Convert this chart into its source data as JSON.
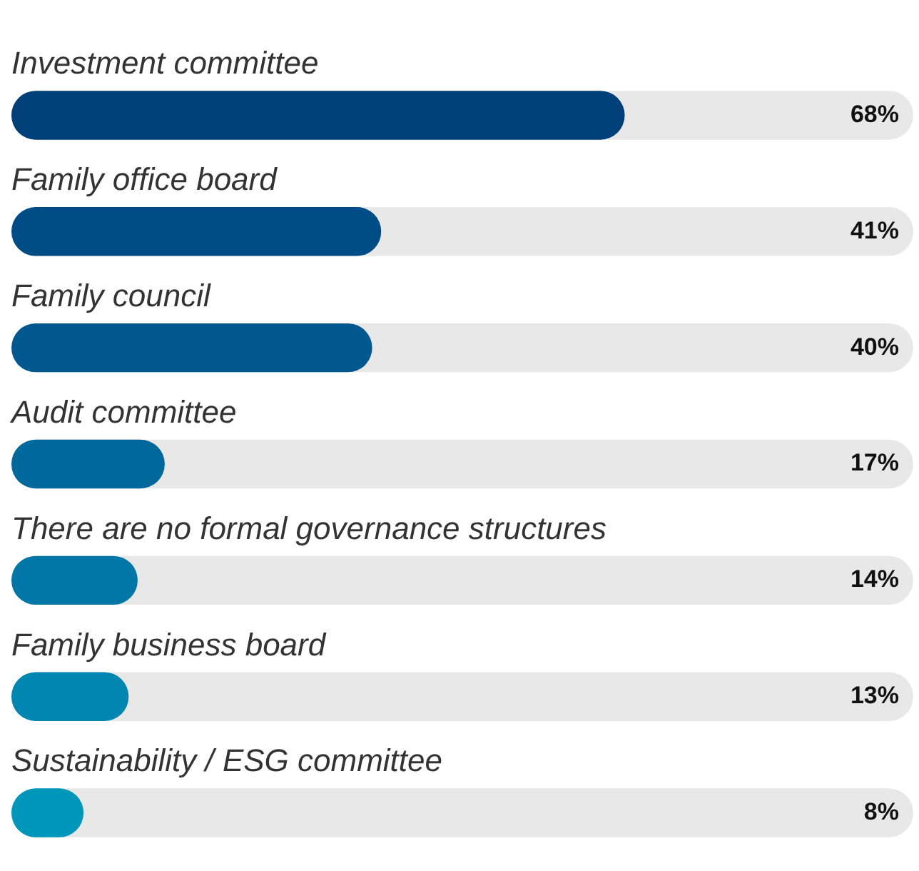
{
  "chart_data": {
    "type": "bar",
    "orientation": "horizontal",
    "categories": [
      "Investment committee",
      "Family office board",
      "Family council",
      "Audit committee",
      "There are no formal governance structures",
      "Family business board",
      "Sustainability / ESG committee"
    ],
    "values": [
      68,
      41,
      40,
      17,
      14,
      13,
      8
    ],
    "colors": [
      "#003f78",
      "#004c86",
      "#00588f",
      "#00689a",
      "#0077a6",
      "#0086b0",
      "#0096b9"
    ],
    "value_labels": [
      "68%",
      "41%",
      "40%",
      "17%",
      "14%",
      "13%",
      "8%"
    ],
    "xlim": [
      0,
      100
    ],
    "tick_labels": false,
    "grid": false,
    "legend": false
  }
}
